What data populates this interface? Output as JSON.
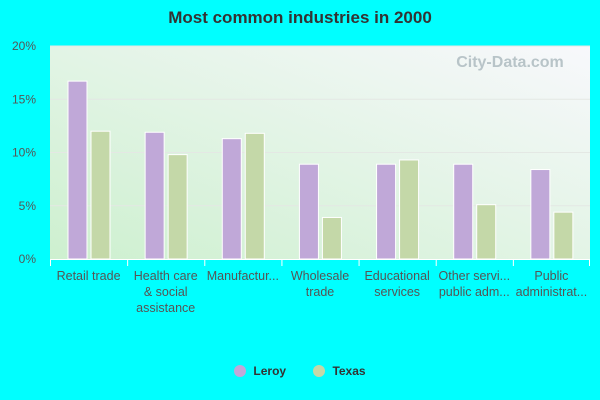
{
  "chart_data": {
    "type": "bar",
    "title": "Most common industries in 2000",
    "categories": [
      [
        "Retail trade"
      ],
      [
        "Health care",
        "& social",
        "assistance"
      ],
      [
        "Manufactur..."
      ],
      [
        "Wholesale",
        "trade"
      ],
      [
        "Educational",
        "services"
      ],
      [
        "Other servi...",
        "public adm..."
      ],
      [
        "Public",
        "administrat..."
      ]
    ],
    "series": [
      {
        "name": "Leroy",
        "color": "#c0a8d8",
        "values": [
          16.7,
          11.9,
          11.3,
          8.9,
          8.9,
          8.9,
          8.4
        ]
      },
      {
        "name": "Texas",
        "color": "#c4d8a8",
        "values": [
          12.0,
          9.8,
          11.8,
          3.9,
          9.3,
          5.1,
          4.4
        ]
      }
    ],
    "yticks": [
      "0%",
      "5%",
      "10%",
      "15%",
      "20%"
    ],
    "ylim": [
      0,
      20
    ],
    "grid": true,
    "legend": "bottom",
    "watermark": "City-Data.com"
  }
}
